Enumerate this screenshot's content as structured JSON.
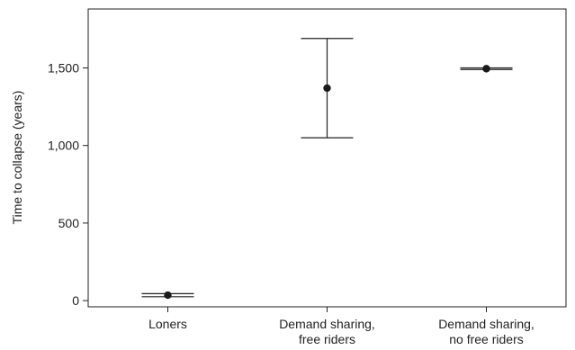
{
  "chart_data": {
    "type": "scatter",
    "subtype": "point-with-error-bars",
    "title": "",
    "xlabel": "",
    "ylabel": "Time to collapse (years)",
    "ylim": [
      -40,
      1880
    ],
    "yticks": [
      0,
      500,
      1000,
      1500
    ],
    "ytick_labels": [
      "0",
      "500",
      "1,000",
      "1,500"
    ],
    "grid": false,
    "legend": "none",
    "categories": [
      [
        "Loners"
      ],
      [
        "Demand sharing,",
        "free riders"
      ],
      [
        "Demand sharing,",
        "no free riders"
      ]
    ],
    "series": [
      {
        "values": [
          35,
          1370,
          1495
        ],
        "error_low": [
          25,
          1050,
          1490
        ],
        "error_high": [
          45,
          1690,
          1500
        ]
      }
    ]
  }
}
